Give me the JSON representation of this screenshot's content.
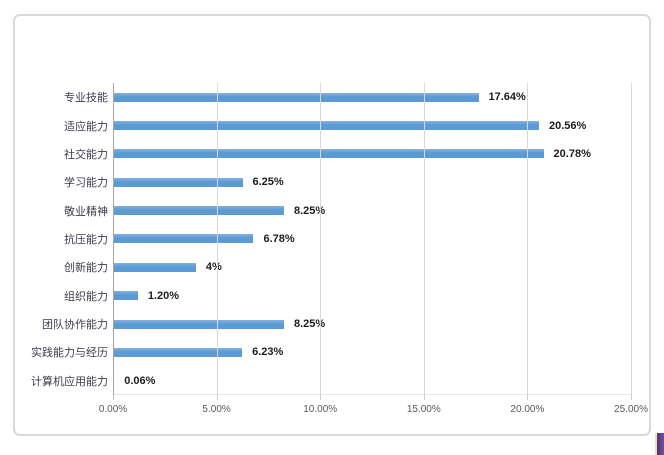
{
  "chart_data": {
    "type": "bar",
    "orientation": "horizontal",
    "title": "",
    "xlabel": "",
    "ylabel": "",
    "grid": true,
    "legend": false,
    "xlim": [
      0,
      25
    ],
    "x_ticks": [
      0,
      5,
      10,
      15,
      20,
      25
    ],
    "x_tick_labels": [
      "0.00%",
      "5.00%",
      "10.00%",
      "15.00%",
      "20.00%",
      "25.00%"
    ],
    "categories": [
      "专业技能",
      "适应能力",
      "社交能力",
      "学习能力",
      "敬业精神",
      "抗压能力",
      "创新能力",
      "组织能力",
      "团队协作能力",
      "实践能力与经历",
      "计算机应用能力"
    ],
    "values": [
      17.64,
      20.56,
      20.78,
      6.25,
      8.25,
      6.78,
      4,
      1.2,
      8.25,
      6.23,
      0.06
    ],
    "data_labels": [
      "17.64%",
      "20.56%",
      "20.78%",
      "6.25%",
      "8.25%",
      "6.78%",
      "4%",
      "1.20%",
      "8.25%",
      "6.23%",
      "0.06%"
    ]
  },
  "colors": {
    "bar": "#5b9bd5",
    "gridline": "#d9d9d9",
    "axis_line": "#a6a6a6",
    "category_label": "#3c3c50",
    "value_label": "#1c1c1c",
    "tick_label": "#595959",
    "card_border": "#d9d9d9",
    "corner_mark": "#5e3f86"
  }
}
